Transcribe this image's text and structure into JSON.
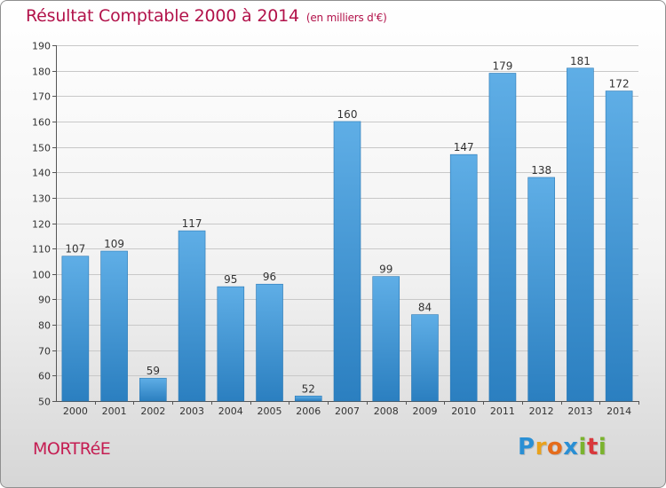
{
  "header": {
    "title": "Résultat Comptable 2000 à 2014",
    "subtitle": "(en milliers d'€)"
  },
  "commune": "MORTRéE",
  "logo": {
    "letters": [
      {
        "ch": "P",
        "color": "#2a8fd4"
      },
      {
        "ch": "r",
        "color": "#e9a21d"
      },
      {
        "ch": "o",
        "color": "#e56c1c"
      },
      {
        "ch": "x",
        "color": "#2a8fd4"
      },
      {
        "ch": "i",
        "color": "#7bb32e"
      },
      {
        "ch": "t",
        "color": "#d9383c"
      },
      {
        "ch": "i",
        "color": "#7bb32e"
      }
    ]
  },
  "colors": {
    "bar_light": "#5faee6",
    "bar_dark": "#2b7fc0",
    "grid": "#c8c8c8"
  },
  "chart_data": {
    "type": "bar",
    "title": "Résultat Comptable 2000 à 2014",
    "subtitle": "(en milliers d'€)",
    "categories": [
      "2000",
      "2001",
      "2002",
      "2003",
      "2004",
      "2005",
      "2006",
      "2007",
      "2008",
      "2009",
      "2010",
      "2011",
      "2012",
      "2013",
      "2014"
    ],
    "values": [
      107,
      109,
      59,
      117,
      95,
      96,
      52,
      160,
      99,
      84,
      147,
      179,
      138,
      181,
      172
    ],
    "ylim": [
      50,
      190
    ],
    "yticks": [
      50,
      60,
      70,
      80,
      90,
      100,
      110,
      120,
      130,
      140,
      150,
      160,
      170,
      180,
      190
    ],
    "grid": true,
    "data_labels": true
  }
}
